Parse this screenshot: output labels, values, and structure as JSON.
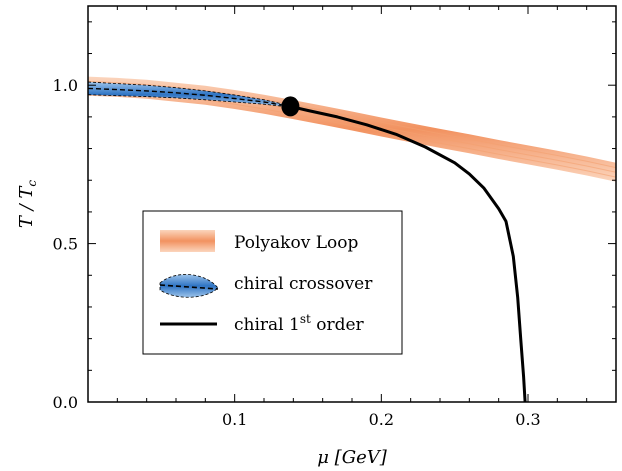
{
  "chart_data": {
    "type": "line",
    "xlabel": "μ [GeV]",
    "ylabel_main": "T / T",
    "ylabel_sub": "c",
    "xlim": [
      0.0,
      0.36
    ],
    "ylim": [
      0.0,
      1.25
    ],
    "x_ticks": [
      {
        "value": 0.1,
        "label": "0.1"
      },
      {
        "value": 0.2,
        "label": "0.2"
      },
      {
        "value": 0.3,
        "label": "0.3"
      }
    ],
    "y_ticks": [
      {
        "value": 0.0,
        "label": "0.0"
      },
      {
        "value": 0.5,
        "label": "0.5"
      },
      {
        "value": 1.0,
        "label": "1.0"
      }
    ],
    "series": [
      {
        "name": "Polyakov Loop",
        "kind": "band",
        "color": "#f08a50",
        "x": [
          0.0,
          0.02,
          0.04,
          0.06,
          0.08,
          0.1,
          0.12,
          0.14,
          0.16,
          0.18,
          0.2,
          0.22,
          0.24,
          0.26,
          0.28,
          0.3,
          0.32,
          0.34,
          0.36
        ],
        "y": [
          0.997,
          0.993,
          0.987,
          0.978,
          0.968,
          0.955,
          0.94,
          0.923,
          0.905,
          0.887,
          0.868,
          0.85,
          0.832,
          0.815,
          0.797,
          0.78,
          0.763,
          0.745,
          0.725
        ],
        "half_width": 0.03
      },
      {
        "name": "chiral crossover",
        "kind": "band",
        "color": "#3a7cc8",
        "x": [
          0.0,
          0.02,
          0.04,
          0.06,
          0.08,
          0.1,
          0.12,
          0.138
        ],
        "y": [
          0.99,
          0.986,
          0.982,
          0.976,
          0.968,
          0.958,
          0.947,
          0.933
        ],
        "half_width": [
          0.02,
          0.019,
          0.018,
          0.016,
          0.014,
          0.011,
          0.007,
          0.002
        ]
      },
      {
        "name": "chiral 1st order",
        "kind": "line",
        "color": "#000000",
        "x": [
          0.138,
          0.15,
          0.17,
          0.19,
          0.21,
          0.23,
          0.25,
          0.26,
          0.27,
          0.28,
          0.285,
          0.29,
          0.293,
          0.295,
          0.297,
          0.298
        ],
        "y": [
          0.933,
          0.92,
          0.9,
          0.875,
          0.845,
          0.805,
          0.755,
          0.72,
          0.675,
          0.61,
          0.57,
          0.46,
          0.33,
          0.2,
          0.08,
          0.0
        ]
      }
    ],
    "critical_point": {
      "x": 0.138,
      "y": 0.933
    },
    "legend": {
      "placement": "lower-left",
      "entries": [
        {
          "label": "Polyakov Loop"
        },
        {
          "label": "chiral crossover"
        },
        {
          "label_main": "chiral 1",
          "label_sup": "st",
          "label_tail": " order"
        }
      ]
    }
  }
}
